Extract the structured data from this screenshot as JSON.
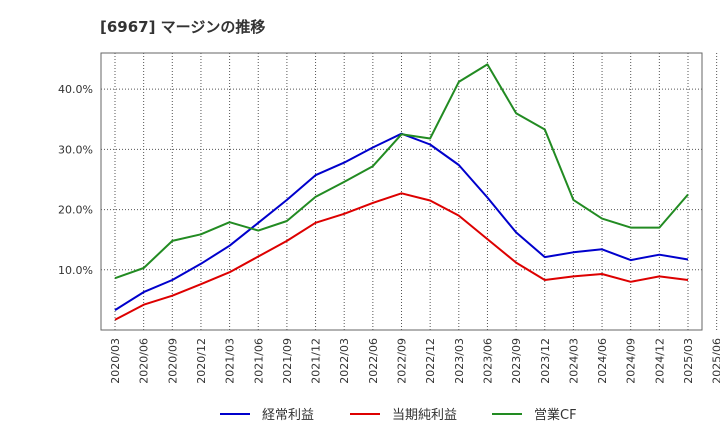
{
  "title": "[6967]  マージンの推移",
  "chart_data": {
    "type": "line",
    "title": "[6967]  マージンの推移",
    "x": [
      "2020/03",
      "2020/06",
      "2020/09",
      "2020/12",
      "2021/03",
      "2021/06",
      "2021/09",
      "2021/12",
      "2022/03",
      "2022/06",
      "2022/09",
      "2022/12",
      "2023/03",
      "2023/06",
      "2023/09",
      "2023/12",
      "2024/03",
      "2024/06",
      "2024/09",
      "2024/12",
      "2025/03",
      "2025/06"
    ],
    "ylim": [
      0,
      46
    ],
    "yticks": [
      10,
      20,
      30,
      40
    ],
    "ytick_labels": [
      "10.0%",
      "20.0%",
      "30.0%",
      "40.0%"
    ],
    "grid": true,
    "legend_position": "bottom",
    "series": [
      {
        "name": "経常利益",
        "color": "#0000cc",
        "values": [
          3.3,
          6.3,
          8.3,
          11.0,
          14.0,
          17.8,
          21.6,
          25.7,
          27.8,
          30.3,
          32.6,
          30.8,
          27.4,
          22.0,
          16.2,
          12.1,
          12.9,
          13.4,
          11.6,
          12.5,
          11.7,
          null
        ]
      },
      {
        "name": "当期純利益",
        "color": "#dd0000",
        "values": [
          1.7,
          4.2,
          5.7,
          7.6,
          9.6,
          12.2,
          14.8,
          17.8,
          19.3,
          21.1,
          22.7,
          21.5,
          19.0,
          15.1,
          11.2,
          8.3,
          8.9,
          9.3,
          8.0,
          8.9,
          8.3,
          null
        ]
      },
      {
        "name": "営業CF",
        "color": "#228b22",
        "values": [
          8.6,
          10.3,
          14.8,
          15.9,
          17.9,
          16.5,
          18.1,
          22.1,
          24.6,
          27.2,
          32.5,
          31.8,
          41.2,
          44.1,
          36.0,
          33.3,
          21.6,
          18.5,
          17.0,
          17.0,
          22.5,
          null
        ]
      }
    ]
  }
}
